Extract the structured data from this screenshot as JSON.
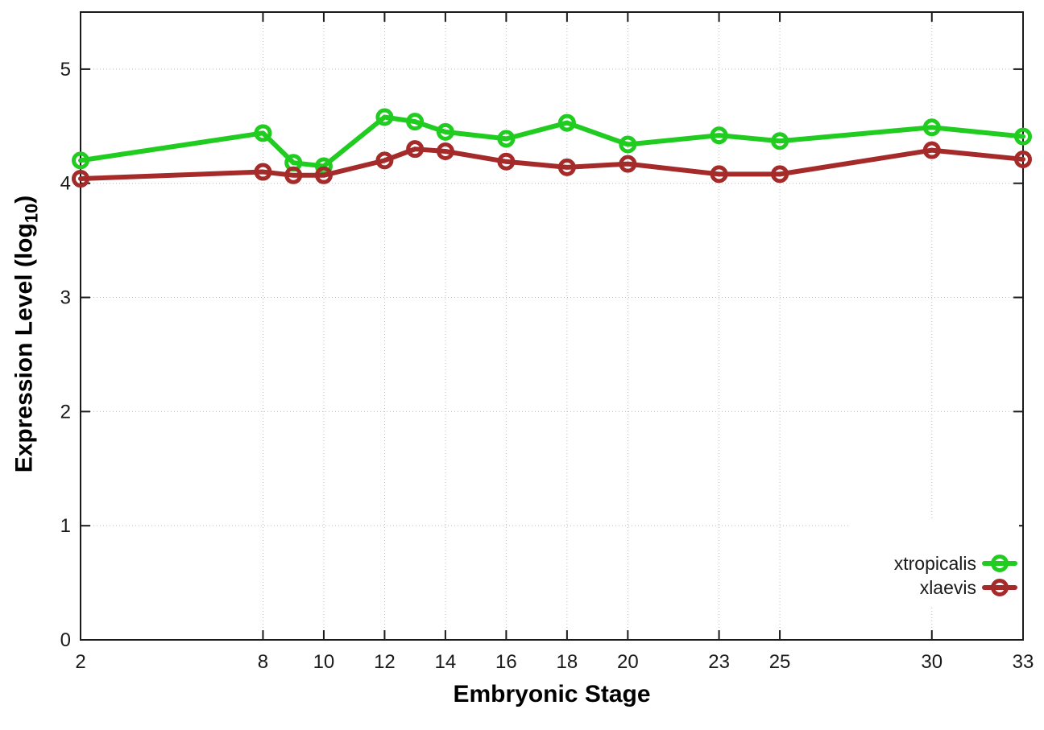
{
  "chart_data": {
    "type": "line",
    "title": "",
    "xlabel": "Embryonic Stage",
    "ylabel": {
      "prefix": "Expression Level (log",
      "sub": "10",
      "suffix": ")"
    },
    "x": [
      2,
      8,
      9,
      10,
      12,
      13,
      14,
      16,
      18,
      20,
      23,
      25,
      30,
      33
    ],
    "xtick_labels": [
      "2",
      "8",
      "10",
      "12",
      "14",
      "16",
      "18",
      "20",
      "23",
      "25",
      "30",
      "33"
    ],
    "xtick_values": [
      2,
      8,
      10,
      12,
      14,
      16,
      18,
      20,
      23,
      25,
      30,
      33
    ],
    "ytick_labels": [
      "0",
      "1",
      "2",
      "3",
      "4",
      "5"
    ],
    "ytick_values": [
      0,
      1,
      2,
      3,
      4,
      5
    ],
    "xlim": [
      2,
      33
    ],
    "ylim": [
      0,
      5.5
    ],
    "grid": true,
    "legend_position": "inside-bottom-right",
    "series": [
      {
        "name": "xtropicalis",
        "color": "#21cc21",
        "values": [
          4.2,
          4.44,
          4.18,
          4.15,
          4.58,
          4.54,
          4.45,
          4.39,
          4.53,
          4.34,
          4.42,
          4.37,
          4.49,
          4.41
        ]
      },
      {
        "name": "xlaevis",
        "color": "#a52a2a",
        "values": [
          4.04,
          4.1,
          4.07,
          4.07,
          4.2,
          4.3,
          4.28,
          4.19,
          4.14,
          4.17,
          4.08,
          4.08,
          4.29,
          4.21
        ]
      }
    ],
    "axis_color": "#1a1a1a",
    "grid_color": "#bbbbbb",
    "background": "#ffffff"
  }
}
